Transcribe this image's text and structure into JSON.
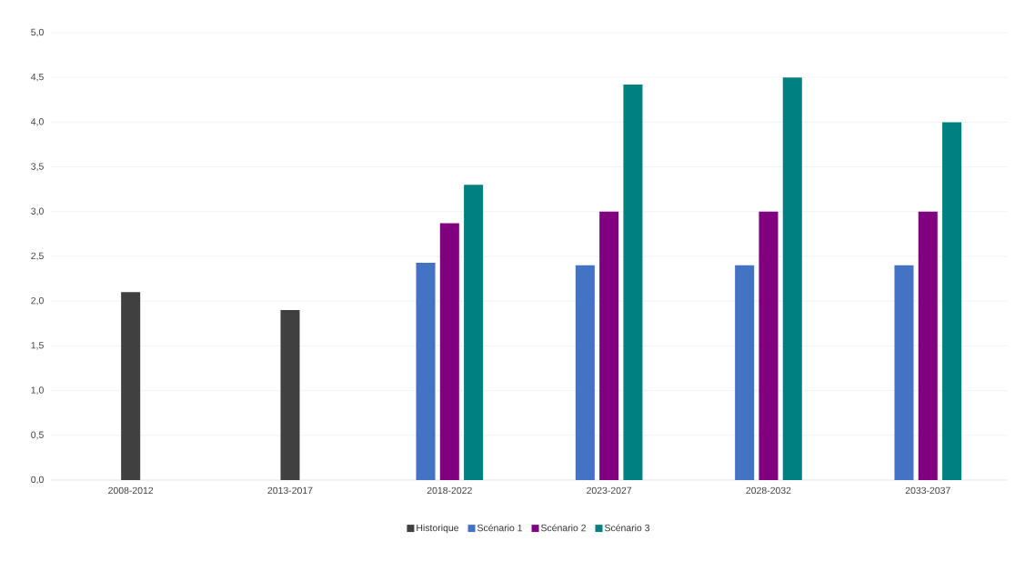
{
  "chart_data": {
    "type": "bar",
    "categories": [
      "2008-2012",
      "2013-2017",
      "2018-2022",
      "2023-2027",
      "2028-2032",
      "2033-2037"
    ],
    "series": [
      {
        "name": "Historique",
        "color": "#404040",
        "values": [
          2.1,
          1.9,
          null,
          null,
          null,
          null
        ]
      },
      {
        "name": "Scénario 1",
        "color": "#4472c4",
        "values": [
          null,
          null,
          2.43,
          2.4,
          2.4,
          2.4
        ]
      },
      {
        "name": "Scénario 2",
        "color": "#800080",
        "values": [
          null,
          null,
          2.87,
          3.0,
          3.0,
          3.0
        ]
      },
      {
        "name": "Scénario 3",
        "color": "#008080",
        "values": [
          null,
          null,
          3.3,
          4.42,
          4.5,
          4.0
        ]
      }
    ],
    "ylim": [
      0,
      5
    ],
    "yticks": [
      {
        "value": 0,
        "label": "0,0"
      },
      {
        "value": 0.5,
        "label": "0,5"
      },
      {
        "value": 1,
        "label": "1,0"
      },
      {
        "value": 1.5,
        "label": "1,5"
      },
      {
        "value": 2,
        "label": "2,0"
      },
      {
        "value": 2.5,
        "label": "2,5"
      },
      {
        "value": 3,
        "label": "3,0"
      },
      {
        "value": 3.5,
        "label": "3,5"
      },
      {
        "value": 4,
        "label": "4,0"
      },
      {
        "value": 4.5,
        "label": "4,5"
      },
      {
        "value": 5,
        "label": "5,0"
      }
    ],
    "grid": "y",
    "legend": "bottom"
  }
}
